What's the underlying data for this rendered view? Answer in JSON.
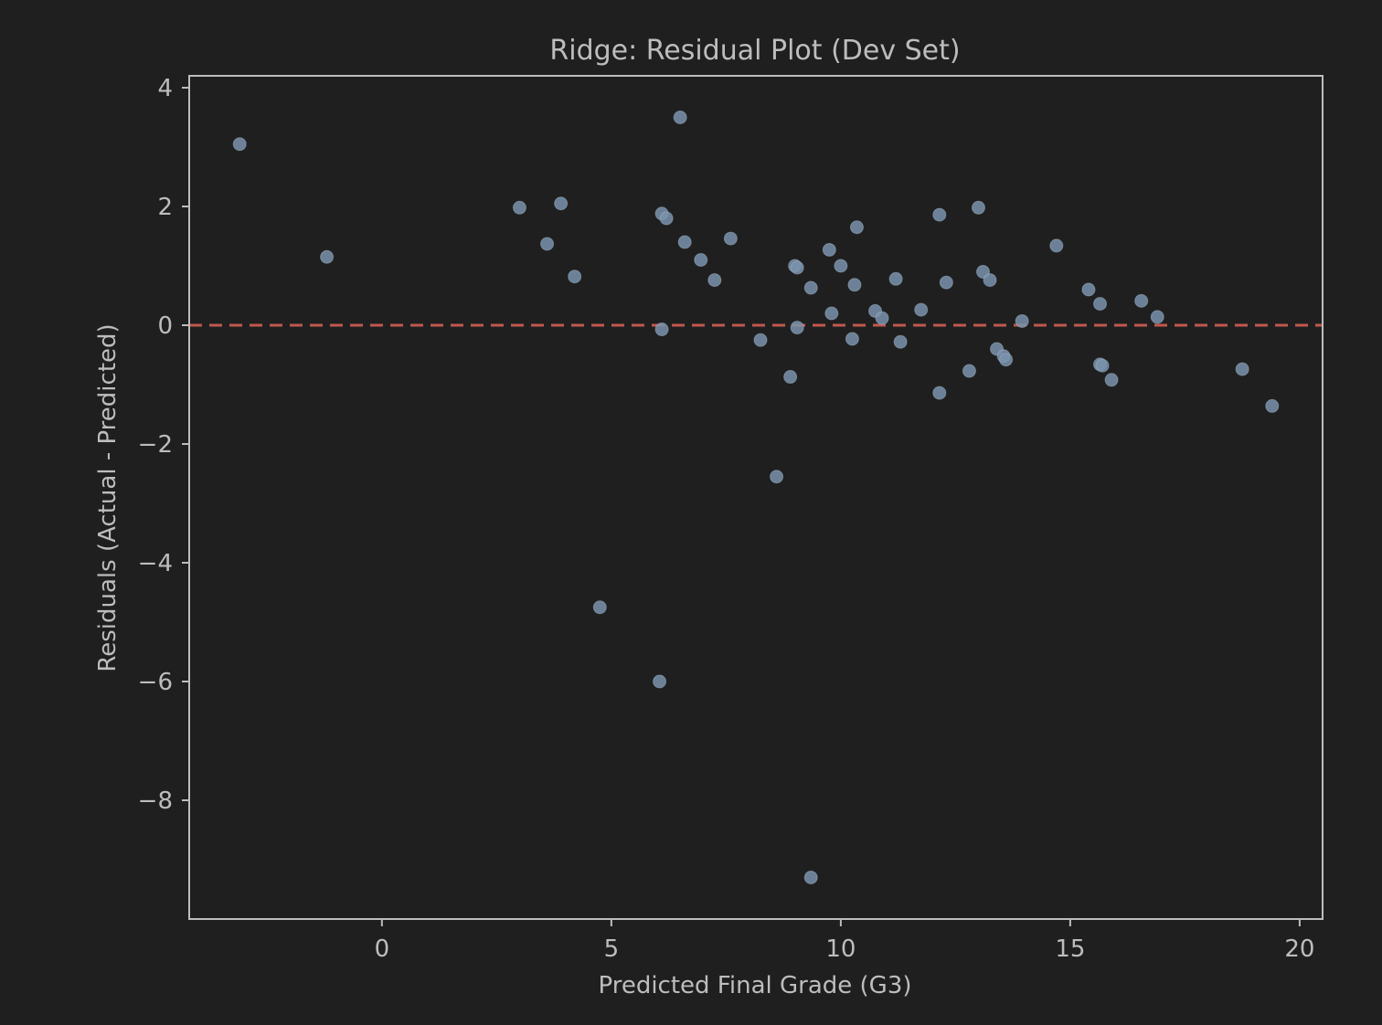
{
  "chart_data": {
    "type": "scatter",
    "title": "Ridge: Residual Plot (Dev Set)",
    "xlabel": "Predicted Final Grade (G3)",
    "ylabel": "Residuals (Actual - Predicted)",
    "xlim": [
      -4.2,
      20.5
    ],
    "ylim": [
      -10,
      4.2
    ],
    "xticks": [
      0,
      5,
      10,
      15,
      20
    ],
    "yticks": [
      4,
      2,
      0,
      -2,
      -4,
      -6,
      -8
    ],
    "xtick_labels": [
      "0",
      "5",
      "10",
      "15",
      "20"
    ],
    "ytick_labels": [
      "4",
      "2",
      "0",
      "−2",
      "−4",
      "−6",
      "−8"
    ],
    "grid": false,
    "reference_line": {
      "y": 0,
      "style": "dashed",
      "color": "#c0584d"
    },
    "point_color": "#7a93ad",
    "axes_color": "#bdbdbd",
    "background_color": "#1f1f1f",
    "points": [
      {
        "x": -3.1,
        "y": 3.05
      },
      {
        "x": -1.2,
        "y": 1.15
      },
      {
        "x": 3.0,
        "y": 1.98
      },
      {
        "x": 3.6,
        "y": 1.37
      },
      {
        "x": 3.9,
        "y": 2.05
      },
      {
        "x": 4.2,
        "y": 0.82
      },
      {
        "x": 4.75,
        "y": -4.75
      },
      {
        "x": 6.05,
        "y": -6.0
      },
      {
        "x": 6.1,
        "y": -0.07
      },
      {
        "x": 6.1,
        "y": 1.88
      },
      {
        "x": 6.2,
        "y": 1.8
      },
      {
        "x": 6.5,
        "y": 3.5
      },
      {
        "x": 6.6,
        "y": 1.4
      },
      {
        "x": 6.95,
        "y": 1.1
      },
      {
        "x": 7.25,
        "y": 0.76
      },
      {
        "x": 7.6,
        "y": 1.46
      },
      {
        "x": 8.25,
        "y": -0.25
      },
      {
        "x": 8.6,
        "y": -2.55
      },
      {
        "x": 8.9,
        "y": -0.87
      },
      {
        "x": 9.0,
        "y": 1.0
      },
      {
        "x": 9.05,
        "y": 0.97
      },
      {
        "x": 9.05,
        "y": -0.04
      },
      {
        "x": 9.35,
        "y": 0.63
      },
      {
        "x": 9.35,
        "y": -9.3
      },
      {
        "x": 9.75,
        "y": 1.27
      },
      {
        "x": 9.8,
        "y": 0.2
      },
      {
        "x": 10.0,
        "y": 1.0
      },
      {
        "x": 10.25,
        "y": -0.23
      },
      {
        "x": 10.3,
        "y": 0.68
      },
      {
        "x": 10.35,
        "y": 1.65
      },
      {
        "x": 10.75,
        "y": 0.24
      },
      {
        "x": 10.9,
        "y": 0.12
      },
      {
        "x": 11.2,
        "y": 0.78
      },
      {
        "x": 11.3,
        "y": -0.28
      },
      {
        "x": 11.75,
        "y": 0.26
      },
      {
        "x": 12.15,
        "y": 1.86
      },
      {
        "x": 12.15,
        "y": -1.14
      },
      {
        "x": 12.3,
        "y": 0.72
      },
      {
        "x": 12.8,
        "y": -0.77
      },
      {
        "x": 13.0,
        "y": 1.98
      },
      {
        "x": 13.1,
        "y": 0.9
      },
      {
        "x": 13.25,
        "y": 0.76
      },
      {
        "x": 13.4,
        "y": -0.4
      },
      {
        "x": 13.55,
        "y": -0.52
      },
      {
        "x": 13.6,
        "y": -0.58
      },
      {
        "x": 13.95,
        "y": 0.07
      },
      {
        "x": 14.7,
        "y": 1.34
      },
      {
        "x": 15.4,
        "y": 0.6
      },
      {
        "x": 15.65,
        "y": 0.36
      },
      {
        "x": 15.65,
        "y": -0.66
      },
      {
        "x": 15.7,
        "y": -0.68
      },
      {
        "x": 15.9,
        "y": -0.92
      },
      {
        "x": 16.55,
        "y": 0.41
      },
      {
        "x": 16.9,
        "y": 0.14
      },
      {
        "x": 18.75,
        "y": -0.74
      },
      {
        "x": 19.4,
        "y": -1.36
      }
    ]
  }
}
